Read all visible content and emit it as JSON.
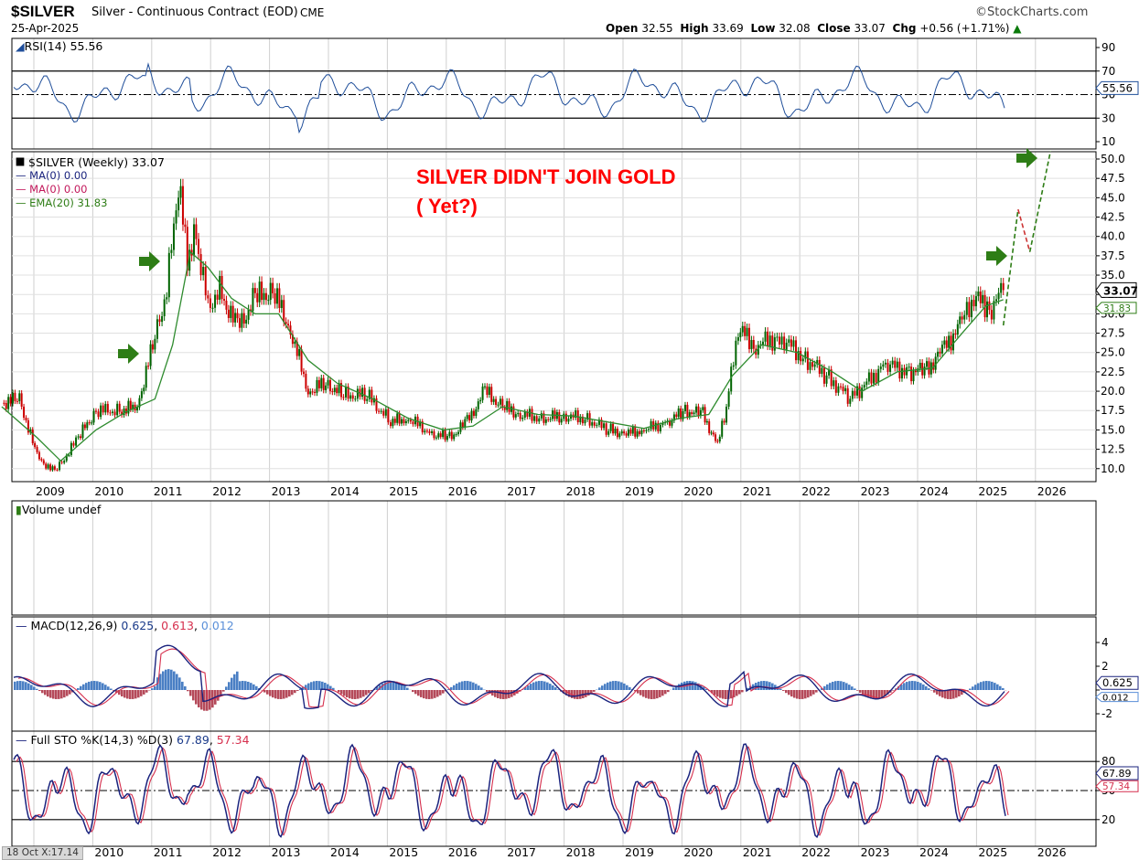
{
  "header": {
    "symbol": "$SILVER",
    "description": "Silver - Continuous Contract (EOD)",
    "exchange": "CME",
    "date": "25-Apr-2025",
    "brand": "©StockCharts.com",
    "ohlc": {
      "open_label": "Open",
      "open": "32.55",
      "high_label": "High",
      "high": "33.69",
      "low_label": "Low",
      "low": "32.08",
      "close_label": "Close",
      "close": "33.07",
      "chg_label": "Chg",
      "chg": "+0.56 (+1.71%)"
    }
  },
  "rsi": {
    "label": "RSI(14) 55.56",
    "value_tag": "55.56",
    "ticks": [
      "90",
      "70",
      "50",
      "30",
      "10"
    ]
  },
  "price": {
    "legend": {
      "main": "$SILVER (Weekly) 33.07",
      "ma1": "MA(0) 0.00",
      "ma2": "MA(0) 0.00",
      "ema": "EMA(20) 31.83"
    },
    "annotation_line1": "SILVER DIDN'T JOIN GOLD",
    "annotation_line2": "( Yet?)",
    "close_tag": "33.07",
    "ema_tag": "31.83",
    "colors": {
      "up": "#006400",
      "down": "#cc0000",
      "ema": "#2e8b2e",
      "annotation": "#ff0000",
      "arrow": "#2e7d16"
    }
  },
  "volume": {
    "label": "Volume undef"
  },
  "macd": {
    "label_prefix": "MACD(12,26,9)",
    "v1": "0.625",
    "v2": "0.613",
    "v3": "0.012",
    "ticks": [
      "4",
      "2",
      "0",
      "-2"
    ],
    "tag1": "0.625",
    "tag2": "0.012"
  },
  "sto": {
    "label_prefix": "Full STO %K(14,3) %D(3)",
    "k": "67.89",
    "d": "57.34",
    "ticks": [
      "80",
      "50",
      "20"
    ],
    "tag_k": "67.89",
    "tag_d": "57.34"
  },
  "footer": {
    "crosshair": "18 Oct X:17.14"
  },
  "chart_data": {
    "type": "line",
    "x_years": [
      "2009",
      "2010",
      "2011",
      "2012",
      "2013",
      "2014",
      "2015",
      "2016",
      "2017",
      "2018",
      "2019",
      "2020",
      "2021",
      "2022",
      "2023",
      "2024",
      "2025",
      "2026"
    ],
    "y_ticks": [
      "10.0",
      "12.5",
      "15.0",
      "17.5",
      "20.0",
      "22.5",
      "25.0",
      "27.5",
      "30.0",
      "32.5",
      "35.0",
      "37.5",
      "40.0",
      "42.5",
      "45.0",
      "47.5",
      "50.0"
    ],
    "ylim": [
      7.5,
      52.0
    ],
    "series": [
      {
        "name": "$SILVER (Weekly)",
        "x": [
          2008.3,
          2008.6,
          2008.9,
          2009.2,
          2009.6,
          2009.9,
          2010.3,
          2010.6,
          2010.9,
          2011.1,
          2011.3,
          2011.45,
          2011.6,
          2011.8,
          2012.0,
          2012.3,
          2012.6,
          2012.9,
          2013.2,
          2013.5,
          2013.8,
          2014.1,
          2014.5,
          2014.9,
          2015.2,
          2015.6,
          2015.9,
          2016.2,
          2016.5,
          2016.8,
          2017.1,
          2017.5,
          2017.8,
          2018.2,
          2018.6,
          2018.9,
          2019.2,
          2019.6,
          2019.9,
          2020.2,
          2020.45,
          2020.6,
          2020.8,
          2021.1,
          2021.5,
          2021.9,
          2022.3,
          2022.7,
          2022.9,
          2023.3,
          2023.7,
          2024.0,
          2024.3,
          2024.6,
          2024.8,
          2025.1,
          2025.3
        ],
        "y": [
          18.5,
          19,
          11.5,
          9.5,
          14,
          17.5,
          17.5,
          18,
          27,
          33,
          47,
          37,
          40,
          31,
          33,
          28,
          32,
          33,
          28,
          20,
          21,
          19.5,
          19.5,
          16,
          16.5,
          14.5,
          14,
          16,
          20,
          18,
          17,
          16.5,
          16.8,
          16.5,
          15,
          14.5,
          15,
          16,
          17.5,
          17,
          13,
          18,
          28,
          26,
          27,
          24.5,
          22,
          19,
          20.5,
          23.5,
          22.5,
          22.8,
          25.5,
          29,
          32,
          31,
          33.07
        ]
      },
      {
        "name": "EMA(20)",
        "x": [
          2008.3,
          2008.9,
          2009.3,
          2009.9,
          2010.4,
          2010.9,
          2011.2,
          2011.5,
          2011.8,
          2012.2,
          2012.6,
          2013.0,
          2013.5,
          2014.0,
          2014.6,
          2015.2,
          2015.8,
          2016.3,
          2016.8,
          2017.4,
          2018.0,
          2018.6,
          2019.2,
          2019.8,
          2020.3,
          2020.7,
          2021.2,
          2021.8,
          2022.4,
          2022.9,
          2023.5,
          2024.1,
          2024.6,
          2025.0,
          2025.3
        ],
        "y": [
          18,
          14,
          11,
          15,
          17.3,
          19,
          26,
          38,
          36,
          32,
          30,
          30,
          24,
          21,
          19,
          16.5,
          15,
          15.5,
          18,
          17,
          16.8,
          16,
          15.2,
          16.5,
          17,
          22,
          26,
          25,
          22.5,
          20,
          22.5,
          23,
          27.5,
          31,
          31.83
        ]
      }
    ],
    "projection": [
      {
        "name": "projection-1",
        "color": "#2e7d16",
        "x": [
          2025.3,
          2025.55
        ],
        "y": [
          28.5,
          43.5
        ]
      },
      {
        "name": "projection-2",
        "color": "#cc3333",
        "x": [
          2025.55,
          2025.75
        ],
        "y": [
          43.5,
          38
        ]
      },
      {
        "name": "projection-3",
        "color": "#2e7d16",
        "x": [
          2025.75,
          2026.1
        ],
        "y": [
          38,
          51
        ]
      }
    ],
    "rsi_last": 55.56,
    "macd_last": [
      0.625,
      0.613,
      0.012
    ],
    "sto_last": [
      67.89,
      57.34
    ]
  }
}
